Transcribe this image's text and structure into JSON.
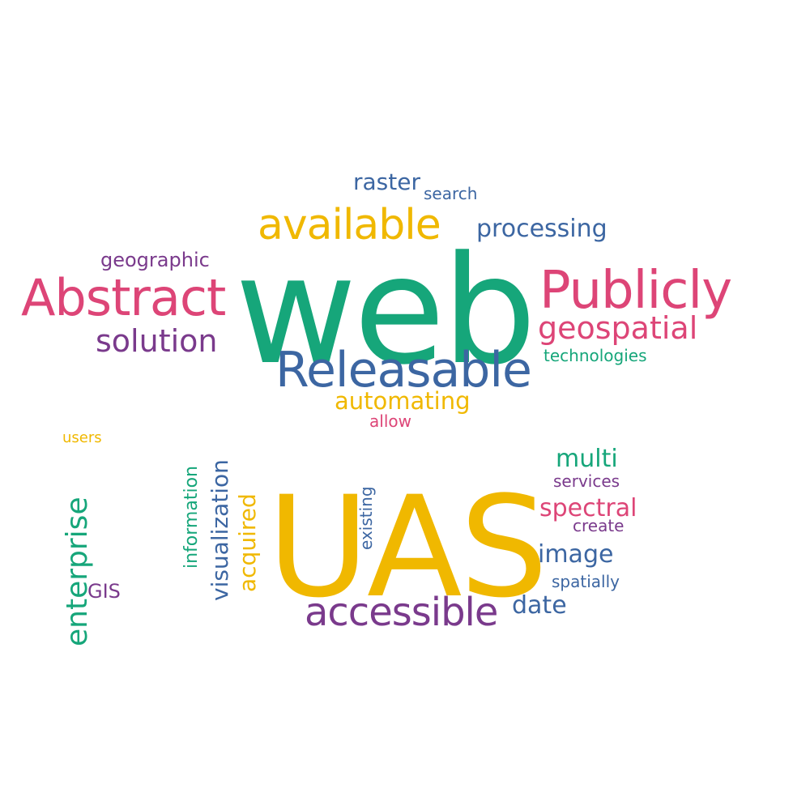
{
  "palette": {
    "green": "#16a67a",
    "yellow": "#f0b800",
    "pink": "#dd4577",
    "blue": "#3c66a2",
    "purple": "#7a3a8c"
  },
  "words": [
    {
      "id": "web",
      "text": "web",
      "color": "green"
    },
    {
      "id": "uas",
      "text": "UAS",
      "color": "yellow"
    },
    {
      "id": "abstract",
      "text": "Abstract",
      "color": "pink"
    },
    {
      "id": "publicly",
      "text": "Publicly",
      "color": "pink"
    },
    {
      "id": "releasable",
      "text": "Releasable",
      "color": "blue"
    },
    {
      "id": "available",
      "text": "available",
      "color": "yellow"
    },
    {
      "id": "accessible",
      "text": "accessible",
      "color": "purple"
    },
    {
      "id": "enterprise",
      "text": "enterprise",
      "color": "green"
    },
    {
      "id": "geospatial",
      "text": "geospatial",
      "color": "pink"
    },
    {
      "id": "solution",
      "text": "solution",
      "color": "purple"
    },
    {
      "id": "processing",
      "text": "processing",
      "color": "blue"
    },
    {
      "id": "visualization",
      "text": "visualization",
      "color": "blue"
    },
    {
      "id": "automating",
      "text": "automating",
      "color": "yellow"
    },
    {
      "id": "raster",
      "text": "raster",
      "color": "blue"
    },
    {
      "id": "acquired",
      "text": "acquired",
      "color": "yellow"
    },
    {
      "id": "spectral",
      "text": "spectral",
      "color": "pink"
    },
    {
      "id": "multi",
      "text": "multi",
      "color": "green"
    },
    {
      "id": "image",
      "text": "image",
      "color": "blue"
    },
    {
      "id": "date",
      "text": "date",
      "color": "blue"
    },
    {
      "id": "geographic",
      "text": "geographic",
      "color": "purple"
    },
    {
      "id": "information",
      "text": "information",
      "color": "green"
    },
    {
      "id": "gis",
      "text": "GIS",
      "color": "purple"
    },
    {
      "id": "technologies",
      "text": "technologies",
      "color": "green"
    },
    {
      "id": "search",
      "text": "search",
      "color": "blue"
    },
    {
      "id": "services",
      "text": "services",
      "color": "purple"
    },
    {
      "id": "spatially",
      "text": "spatially",
      "color": "blue"
    },
    {
      "id": "existing",
      "text": "existing",
      "color": "blue"
    },
    {
      "id": "create",
      "text": "create",
      "color": "purple"
    },
    {
      "id": "allow",
      "text": "allow",
      "color": "pink"
    },
    {
      "id": "users",
      "text": "users",
      "color": "yellow"
    }
  ]
}
